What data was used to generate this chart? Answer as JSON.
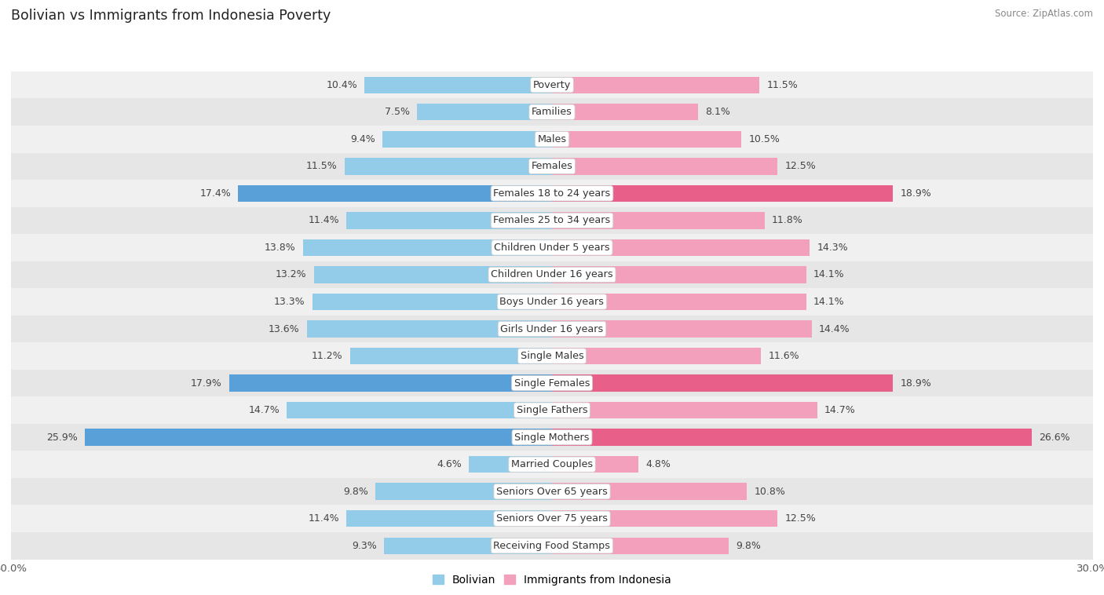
{
  "title": "Bolivian vs Immigrants from Indonesia Poverty",
  "source": "Source: ZipAtlas.com",
  "categories": [
    "Poverty",
    "Families",
    "Males",
    "Females",
    "Females 18 to 24 years",
    "Females 25 to 34 years",
    "Children Under 5 years",
    "Children Under 16 years",
    "Boys Under 16 years",
    "Girls Under 16 years",
    "Single Males",
    "Single Females",
    "Single Fathers",
    "Single Mothers",
    "Married Couples",
    "Seniors Over 65 years",
    "Seniors Over 75 years",
    "Receiving Food Stamps"
  ],
  "bolivian": [
    10.4,
    7.5,
    9.4,
    11.5,
    17.4,
    11.4,
    13.8,
    13.2,
    13.3,
    13.6,
    11.2,
    17.9,
    14.7,
    25.9,
    4.6,
    9.8,
    11.4,
    9.3
  ],
  "indonesia": [
    11.5,
    8.1,
    10.5,
    12.5,
    18.9,
    11.8,
    14.3,
    14.1,
    14.1,
    14.4,
    11.6,
    18.9,
    14.7,
    26.6,
    4.8,
    10.8,
    12.5,
    9.8
  ],
  "bolivian_color": "#92cce8",
  "indonesia_color": "#f2a0bb",
  "highlight_blue": "#5aa0d8",
  "highlight_pink": "#e8608a",
  "row_color_odd": "#f0f0f0",
  "row_color_even": "#e6e6e6",
  "max_val": 30.0,
  "bar_height": 0.62,
  "label_fontsize": 9.2,
  "value_fontsize": 9.0,
  "title_fontsize": 12.5,
  "axis_fontsize": 9.5,
  "legend_labels": [
    "Bolivian",
    "Immigrants from Indonesia"
  ]
}
